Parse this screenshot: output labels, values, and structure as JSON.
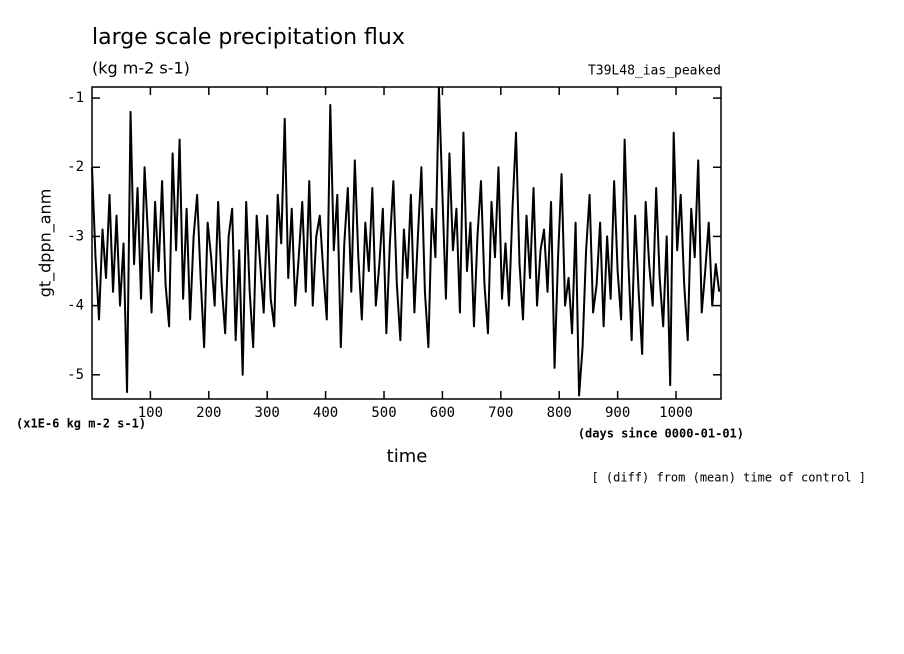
{
  "chart_data": {
    "type": "line",
    "title": "large scale precipitation flux",
    "subtitle": "(kg m-2 s-1)",
    "run_label": "T39L48_ias_peaked",
    "y_label": "gt_dppn_anm",
    "y_unit": "(x1E-6 kg m-2 s-1)",
    "x_label": "time",
    "x_unit": "(days since 0000-01-01)",
    "note": "[ (diff) from (mean) time of control ]",
    "xlim": [
      0,
      1077
    ],
    "ylim": [
      -5.35,
      -0.84
    ],
    "xticks": [
      100,
      200,
      300,
      400,
      500,
      600,
      700,
      800,
      900,
      1000
    ],
    "yticks": [
      -1,
      -2,
      -3,
      -4,
      -5
    ],
    "x": [
      0,
      6,
      12,
      18,
      24,
      30,
      36,
      42,
      48,
      54,
      60,
      66,
      72,
      78,
      84,
      90,
      96,
      102,
      108,
      114,
      120,
      126,
      132,
      138,
      144,
      150,
      156,
      162,
      168,
      174,
      180,
      186,
      192,
      198,
      204,
      210,
      216,
      222,
      228,
      234,
      240,
      246,
      252,
      258,
      264,
      270,
      276,
      282,
      288,
      294,
      300,
      306,
      312,
      318,
      324,
      330,
      336,
      342,
      348,
      354,
      360,
      366,
      372,
      378,
      384,
      390,
      396,
      402,
      408,
      414,
      420,
      426,
      432,
      438,
      444,
      450,
      456,
      462,
      468,
      474,
      480,
      486,
      492,
      498,
      504,
      510,
      516,
      522,
      528,
      534,
      540,
      546,
      552,
      558,
      564,
      570,
      576,
      582,
      588,
      594,
      600,
      606,
      612,
      618,
      624,
      630,
      636,
      642,
      648,
      654,
      660,
      666,
      672,
      678,
      684,
      690,
      696,
      702,
      708,
      714,
      720,
      726,
      732,
      738,
      744,
      750,
      756,
      762,
      768,
      774,
      780,
      786,
      792,
      798,
      804,
      810,
      816,
      822,
      828,
      834,
      840,
      846,
      852,
      858,
      864,
      870,
      876,
      882,
      888,
      894,
      900,
      906,
      912,
      918,
      924,
      930,
      936,
      942,
      948,
      954,
      960,
      966,
      972,
      978,
      984,
      990,
      996,
      1002,
      1008,
      1014,
      1020,
      1026,
      1032,
      1038,
      1044,
      1050,
      1056,
      1062,
      1068,
      1074
    ],
    "series": [
      {
        "color": "#000000",
        "values": [
          -2.0,
          -3.3,
          -4.2,
          -2.9,
          -3.6,
          -2.4,
          -3.8,
          -2.7,
          -4.0,
          -3.1,
          -5.25,
          -1.2,
          -3.4,
          -2.3,
          -3.9,
          -2.0,
          -3.0,
          -4.1,
          -2.5,
          -3.5,
          -2.2,
          -3.7,
          -4.3,
          -1.8,
          -3.2,
          -1.6,
          -3.9,
          -2.6,
          -4.2,
          -3.0,
          -2.4,
          -3.6,
          -4.6,
          -2.8,
          -3.3,
          -4.0,
          -2.5,
          -3.7,
          -4.4,
          -3.0,
          -2.6,
          -4.5,
          -3.2,
          -5.0,
          -2.5,
          -3.8,
          -4.6,
          -2.7,
          -3.4,
          -4.1,
          -2.7,
          -3.9,
          -4.3,
          -2.4,
          -3.1,
          -1.3,
          -3.6,
          -2.6,
          -4.0,
          -3.3,
          -2.5,
          -3.8,
          -2.2,
          -4.0,
          -3.0,
          -2.7,
          -3.5,
          -4.2,
          -1.1,
          -3.2,
          -2.4,
          -4.6,
          -3.1,
          -2.3,
          -3.8,
          -1.9,
          -3.3,
          -4.2,
          -2.8,
          -3.5,
          -2.3,
          -4.0,
          -3.4,
          -2.6,
          -4.4,
          -3.1,
          -2.2,
          -3.7,
          -4.5,
          -2.9,
          -3.6,
          -2.4,
          -4.1,
          -3.0,
          -2.0,
          -3.8,
          -4.6,
          -2.6,
          -3.3,
          -0.85,
          -2.4,
          -3.9,
          -1.8,
          -3.2,
          -2.6,
          -4.1,
          -1.5,
          -3.5,
          -2.8,
          -4.3,
          -3.0,
          -2.2,
          -3.7,
          -4.4,
          -2.5,
          -3.3,
          -2.0,
          -3.9,
          -3.1,
          -4.0,
          -2.6,
          -1.5,
          -3.4,
          -4.2,
          -2.7,
          -3.6,
          -2.3,
          -4.0,
          -3.2,
          -2.9,
          -3.8,
          -2.5,
          -4.9,
          -3.3,
          -2.1,
          -4.0,
          -3.6,
          -4.4,
          -2.8,
          -5.3,
          -4.6,
          -3.2,
          -2.4,
          -4.1,
          -3.7,
          -2.8,
          -4.3,
          -3.0,
          -3.9,
          -2.2,
          -3.5,
          -4.2,
          -1.6,
          -3.3,
          -4.5,
          -2.7,
          -3.8,
          -4.7,
          -2.5,
          -3.4,
          -4.0,
          -2.3,
          -3.6,
          -4.3,
          -3.0,
          -5.15,
          -1.5,
          -3.2,
          -2.4,
          -3.7,
          -4.5,
          -2.6,
          -3.3,
          -1.9,
          -4.1,
          -3.5,
          -2.8,
          -4.0,
          -3.4,
          -3.8
        ]
      }
    ]
  }
}
